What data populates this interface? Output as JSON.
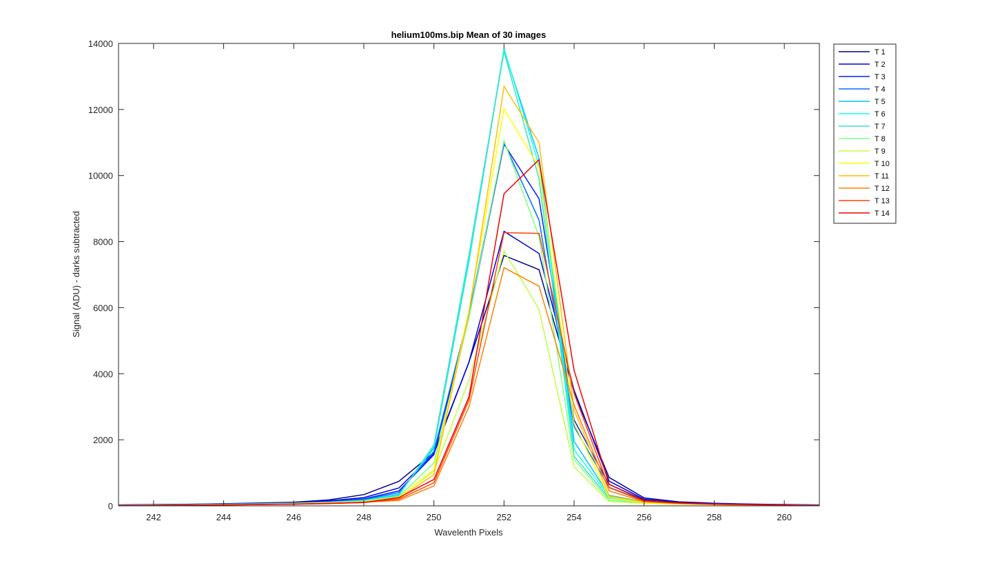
{
  "chart_data": {
    "type": "line",
    "title": "helium100ms.bip  Mean of 30 images",
    "xlabel": "Wavelenth Pixels",
    "ylabel": "Signal (ADU) - darks subtracted",
    "xlim": [
      241,
      261
    ],
    "ylim": [
      0,
      14000
    ],
    "xticks": [
      242,
      244,
      246,
      248,
      250,
      252,
      254,
      256,
      258,
      260
    ],
    "yticks": [
      0,
      2000,
      4000,
      6000,
      8000,
      10000,
      12000,
      14000
    ],
    "grid": false,
    "legend_position": "outside-top-right",
    "x": [
      241,
      242,
      243,
      244,
      245,
      246,
      247,
      248,
      249,
      250,
      251,
      252,
      253,
      254,
      255,
      256,
      257,
      258,
      259,
      260,
      261
    ],
    "series": [
      {
        "name": "T 1",
        "color": "#00008F",
        "values": [
          30,
          40,
          50,
          65,
          85,
          110,
          180,
          340,
          740,
          1620,
          4350,
          7580,
          7150,
          3420,
          860,
          240,
          120,
          80,
          55,
          40,
          30
        ]
      },
      {
        "name": "T 2",
        "color": "#0000DF",
        "values": [
          25,
          35,
          45,
          60,
          75,
          100,
          150,
          250,
          540,
          1580,
          4350,
          8310,
          7640,
          3500,
          750,
          200,
          100,
          70,
          50,
          35,
          25
        ]
      },
      {
        "name": "T 3",
        "color": "#0020FF",
        "values": [
          20,
          30,
          40,
          55,
          70,
          90,
          130,
          210,
          450,
          1550,
          5700,
          10950,
          9300,
          2600,
          650,
          180,
          90,
          60,
          45,
          30,
          20
        ]
      },
      {
        "name": "T 4",
        "color": "#0070FF",
        "values": [
          18,
          28,
          38,
          50,
          65,
          85,
          120,
          190,
          400,
          1650,
          5800,
          11000,
          8650,
          2400,
          560,
          160,
          80,
          55,
          40,
          28,
          18
        ]
      },
      {
        "name": "T 5",
        "color": "#00BFFF",
        "values": [
          15,
          25,
          35,
          45,
          60,
          80,
          110,
          170,
          350,
          1750,
          7400,
          13800,
          10520,
          1950,
          320,
          120,
          70,
          50,
          35,
          25,
          15
        ]
      },
      {
        "name": "T 6",
        "color": "#10FFEF",
        "values": [
          15,
          25,
          35,
          45,
          60,
          80,
          105,
          160,
          330,
          1800,
          7450,
          13850,
          10300,
          1700,
          280,
          110,
          65,
          45,
          30,
          22,
          15
        ]
      },
      {
        "name": "T 7",
        "color": "#40E0C0",
        "values": [
          12,
          22,
          32,
          42,
          55,
          75,
          100,
          150,
          310,
          1850,
          7600,
          13750,
          9900,
          1500,
          230,
          100,
          60,
          40,
          28,
          20,
          12
        ]
      },
      {
        "name": "T 8",
        "color": "#80FF80",
        "values": [
          12,
          20,
          30,
          40,
          52,
          70,
          95,
          140,
          280,
          1300,
          5700,
          11050,
          8150,
          1400,
          170,
          90,
          55,
          38,
          26,
          18,
          12
        ]
      },
      {
        "name": "T 9",
        "color": "#BFFF40",
        "values": [
          10,
          18,
          28,
          38,
          50,
          65,
          90,
          130,
          260,
          1050,
          3800,
          7720,
          5950,
          1180,
          130,
          80,
          50,
          35,
          24,
          16,
          10
        ]
      },
      {
        "name": "T 10",
        "color": "#FFFF00",
        "values": [
          10,
          18,
          26,
          36,
          48,
          62,
          85,
          125,
          240,
          1100,
          5900,
          12020,
          10250,
          2500,
          250,
          100,
          60,
          40,
          27,
          18,
          10
        ]
      },
      {
        "name": "T 11",
        "color": "#FFBF00",
        "values": [
          10,
          16,
          24,
          34,
          46,
          60,
          80,
          120,
          220,
          950,
          5850,
          12700,
          11000,
          2900,
          300,
          110,
          65,
          42,
          28,
          19,
          10
        ]
      },
      {
        "name": "T 12",
        "color": "#FF8000",
        "values": [
          8,
          15,
          22,
          32,
          42,
          55,
          75,
          110,
          160,
          600,
          3000,
          7210,
          6650,
          3050,
          450,
          130,
          75,
          48,
          32,
          21,
          8
        ]
      },
      {
        "name": "T 13",
        "color": "#FF4000",
        "values": [
          8,
          14,
          22,
          30,
          40,
          52,
          72,
          105,
          200,
          700,
          3200,
          8270,
          8250,
          3400,
          550,
          140,
          80,
          50,
          34,
          22,
          8
        ]
      },
      {
        "name": "T 14",
        "color": "#EF0000",
        "values": [
          8,
          14,
          20,
          30,
          40,
          50,
          70,
          100,
          250,
          800,
          3300,
          9450,
          10480,
          4100,
          650,
          160,
          90,
          55,
          36,
          24,
          8
        ]
      }
    ]
  }
}
